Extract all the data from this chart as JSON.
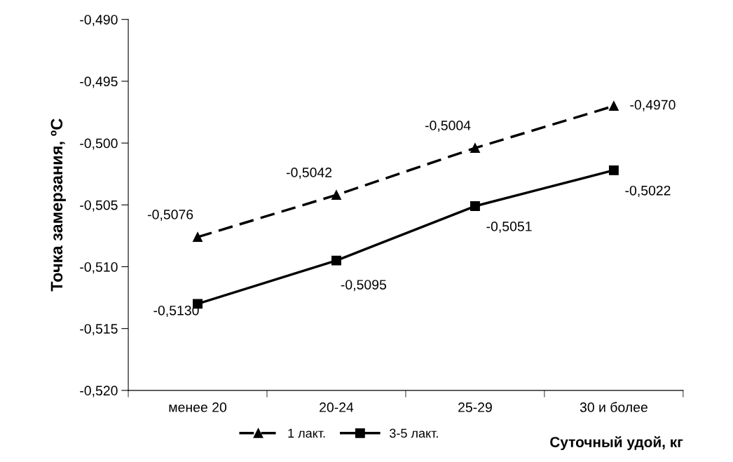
{
  "chart_data": {
    "type": "line",
    "xlabel": "Суточный удой, кг",
    "ylabel": "Точка замерзания, ºC",
    "categories": [
      "менее 20",
      "20-24",
      "25-29",
      "30 и более"
    ],
    "ylim": [
      -0.52,
      -0.49
    ],
    "yticks": [
      {
        "value": -0.52,
        "label": "-0,520"
      },
      {
        "value": -0.515,
        "label": "-0,515"
      },
      {
        "value": -0.51,
        "label": "-0,510"
      },
      {
        "value": -0.505,
        "label": "-0,505"
      },
      {
        "value": -0.5,
        "label": "-0,500"
      },
      {
        "value": -0.495,
        "label": "-0,495"
      },
      {
        "value": -0.49,
        "label": "-0,490"
      }
    ],
    "grid": false,
    "legend": "bottom",
    "series": [
      {
        "name": "1 лакт.",
        "color": "#000000",
        "marker": "triangle",
        "line_style": "dashed",
        "values": [
          -0.5076,
          -0.5042,
          -0.5004,
          -0.497
        ],
        "value_labels": [
          "-0,5076",
          "-0,5042",
          "-0,5004",
          "-0,4970"
        ]
      },
      {
        "name": "3-5 лакт.",
        "color": "#000000",
        "marker": "square",
        "line_style": "solid",
        "values": [
          -0.513,
          -0.5095,
          -0.5051,
          -0.5022
        ],
        "value_labels": [
          "-0,5130",
          "-0,5095",
          "-0,5051",
          "-0,5022"
        ]
      }
    ]
  }
}
